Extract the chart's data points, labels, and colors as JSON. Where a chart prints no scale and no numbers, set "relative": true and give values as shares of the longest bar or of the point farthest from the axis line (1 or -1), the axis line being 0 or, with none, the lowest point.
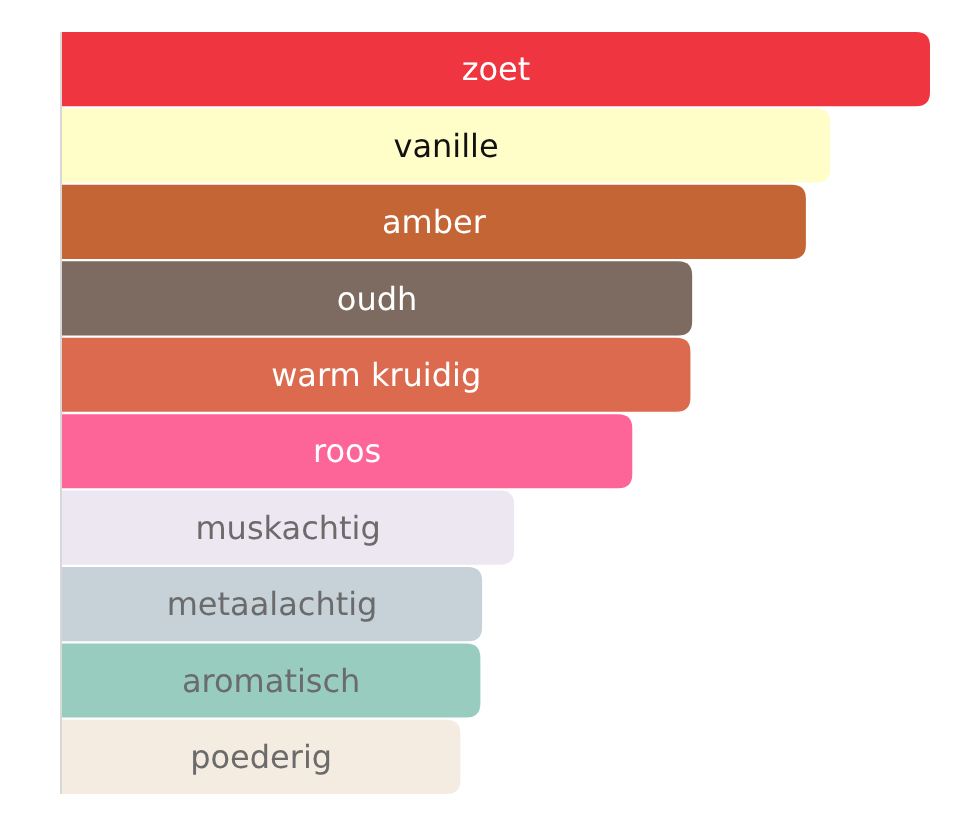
{
  "chart_data": {
    "type": "bar",
    "orientation": "horizontal",
    "relative": true,
    "data_labels": false,
    "categories": [
      "zoet",
      "vanille",
      "amber",
      "oudh",
      "warm kruidig",
      "roos",
      "muskachtig",
      "metaalachtig",
      "aromatisch",
      "poederig"
    ],
    "values": [
      1,
      0.885,
      0.857,
      0.726,
      0.724,
      0.657,
      0.521,
      0.484,
      0.482,
      0.459
    ],
    "colors": [
      "#ee3540",
      "#fffdc8",
      "#c46535",
      "#7d6b62",
      "#dc6a4e",
      "#fd6598",
      "#ede7f1",
      "#c6d1d8",
      "#98ccbf",
      "#f4ebe1"
    ]
  }
}
